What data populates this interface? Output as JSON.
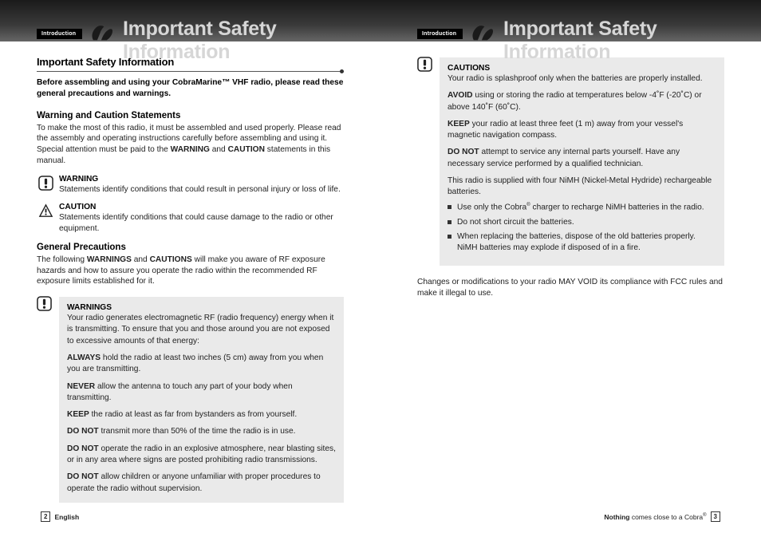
{
  "header": {
    "intro_label": "Introduction",
    "title": "Important Safety Information"
  },
  "left": {
    "section_title": "Important Safety Information",
    "intro_bold": "Before assembling and using your CobraMarine™ VHF radio, please read these general precautions and warnings.",
    "sub1_title": "Warning and Caution Statements",
    "sub1_body_html": "To make the most of this radio, it must be assembled and used properly. Please read the assembly and operating instructions carefully before assembling and using it. Special attention must be paid to the <b>WARNING</b> and <b>CAUTION</b> statements in this manual.",
    "warning_title": "WARNING",
    "warning_text": "Statements identify conditions that could result in personal injury or loss of life.",
    "caution_title": "CAUTION",
    "caution_text": "Statements identify conditions that could cause damage to the radio or other equipment.",
    "sub2_title": "General Precautions",
    "sub2_body_html": "The following <b>WARNINGS</b> and <b>CAUTIONS</b> will make you aware of RF exposure hazards and how to assure you operate the radio within the recommended RF exposure limits established for it.",
    "warnings_block_title": "WARNINGS",
    "warnings_items": [
      "Your radio generates electromagnetic RF (radio frequency) energy when it is transmitting. To ensure that you and those around you are not exposed to excessive amounts of that energy:",
      "<b>ALWAYS</b> hold the radio at least two inches (5 cm) away from you when you are transmitting.",
      "<b>NEVER</b> allow the antenna to touch any part of your body when transmitting.",
      "<b>KEEP</b> the radio at least as far from bystanders as from yourself.",
      "<b>DO NOT</b> transmit more than 50% of the time the radio is in use.",
      "<b>DO NOT</b> operate the radio in an explosive atmosphere, near blasting sites, or in any area where signs are posted prohibiting radio transmissions.",
      "<b>DO NOT</b> allow children or anyone unfamiliar with proper procedures to operate the radio without supervision."
    ]
  },
  "right": {
    "cautions_block_title": "CAUTIONS",
    "cautions_items": [
      "Your radio is splashproof only when the batteries are properly installed.",
      "<b>AVOID</b> using or storing the radio at temperatures below -4˚F (-20˚C) or above 140˚F (60˚C).",
      "<b>KEEP</b> your radio at least three feet (1 m) away from your vessel's magnetic navigation compass.",
      "<b>DO NOT</b> attempt to service any internal parts yourself. Have any necessary service performed by a qualified technician.",
      "This radio is supplied with four NiMH (Nickel-Metal Hydride) rechargeable batteries."
    ],
    "bullet_items": [
      "Use only the Cobra<span class=\"sup\">®</span> charger to recharge NiMH batteries in the radio.",
      "Do not short circuit the batteries.",
      "When replacing the batteries, dispose of the old batteries properly. NiMH batteries may explode if disposed of in a fire."
    ],
    "closing_text": "Changes or modifications to your radio MAY VOID its compliance with FCC rules and make it illegal to use."
  },
  "footer": {
    "left_page": "2",
    "left_lang": "English",
    "right_tagline_html": "<b>Nothing</b> comes close to a Cobra<span class=\"sup\">®</span>",
    "right_page": "3"
  },
  "colors": {
    "gray_box": "#eaeaea",
    "text": "#222222",
    "header_title": "#d6d6d6"
  }
}
